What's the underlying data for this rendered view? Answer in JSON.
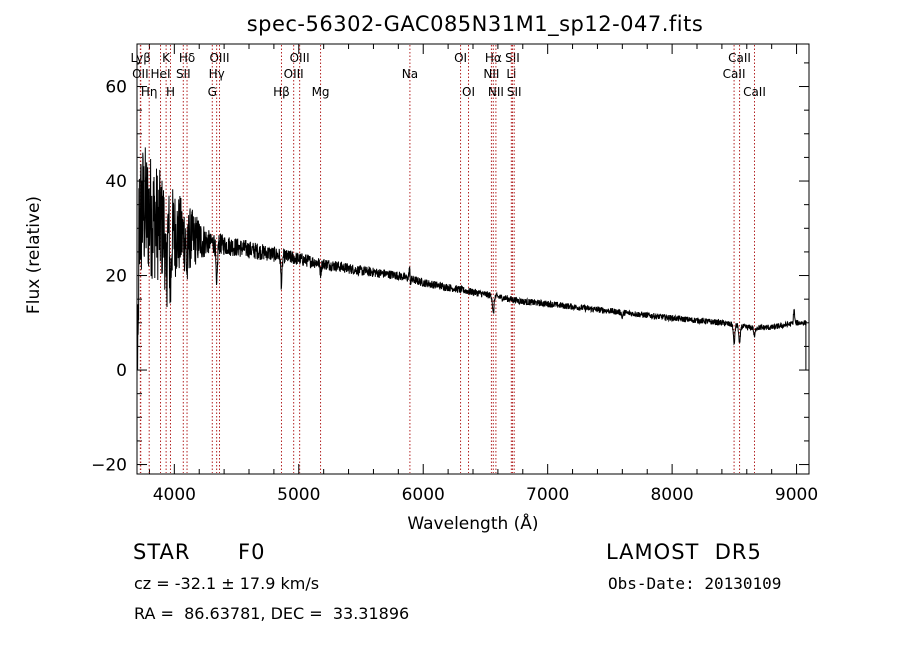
{
  "chart_data": {
    "type": "line",
    "title": "spec-56302-GAC085N31M1_sp12-047.fits",
    "xlabel": "Wavelength (Å)",
    "ylabel": "Flux (relative)",
    "xlim": [
      3700,
      9100
    ],
    "ylim": [
      -22,
      69
    ],
    "xticks": [
      4000,
      5000,
      6000,
      7000,
      8000,
      9000
    ],
    "yticks": [
      -20,
      0,
      20,
      40,
      60
    ],
    "grid": false,
    "line_color": "#000000",
    "marker_color": "#b22222",
    "lines": [
      {
        "label": "Lyβ",
        "wave": 3730,
        "row": 0
      },
      {
        "label": "OII",
        "wave": 3727,
        "row": 1
      },
      {
        "label": "Hη",
        "wave": 3798,
        "row": 2
      },
      {
        "label": "K",
        "wave": 3934,
        "row": 0
      },
      {
        "label": "HeI",
        "wave": 3889,
        "row": 1
      },
      {
        "label": "H",
        "wave": 3969,
        "row": 2
      },
      {
        "label": "Hδ",
        "wave": 4102,
        "row": 0
      },
      {
        "label": "SII",
        "wave": 4072,
        "row": 1
      },
      {
        "label": "OIII",
        "wave": 4363,
        "row": 0
      },
      {
        "label": "Hγ",
        "wave": 4340,
        "row": 1
      },
      {
        "label": "G",
        "wave": 4305,
        "row": 2
      },
      {
        "label": "Hβ",
        "wave": 4861,
        "row": 2
      },
      {
        "label": "OIII",
        "wave": 5007,
        "row": 0
      },
      {
        "label": "OIII",
        "wave": 4959,
        "row": 1
      },
      {
        "label": "Mg",
        "wave": 5175,
        "row": 2
      },
      {
        "label": "Na",
        "wave": 5893,
        "row": 1
      },
      {
        "label": "OI",
        "wave": 6300,
        "row": 0
      },
      {
        "label": "OI",
        "wave": 6364,
        "row": 2
      },
      {
        "label": "Hα",
        "wave": 6563,
        "row": 0
      },
      {
        "label": "NII",
        "wave": 6548,
        "row": 1
      },
      {
        "label": "NII",
        "wave": 6584,
        "row": 2
      },
      {
        "label": "SII",
        "wave": 6717,
        "row": 0
      },
      {
        "label": "Li",
        "wave": 6708,
        "row": 1
      },
      {
        "label": "SII",
        "wave": 6731,
        "row": 2
      },
      {
        "label": "CaII",
        "wave": 8542,
        "row": 0
      },
      {
        "label": "CaII",
        "wave": 8498,
        "row": 1
      },
      {
        "label": "CaII",
        "wave": 8662,
        "row": 2
      }
    ],
    "continuum": [
      [
        3700,
        30
      ],
      [
        3750,
        34
      ],
      [
        3800,
        33
      ],
      [
        3900,
        30
      ],
      [
        4000,
        29
      ],
      [
        4100,
        28
      ],
      [
        4200,
        27.5
      ],
      [
        4300,
        27
      ],
      [
        4500,
        26
      ],
      [
        4700,
        25
      ],
      [
        4900,
        24
      ],
      [
        5000,
        23.5
      ],
      [
        5200,
        22.5
      ],
      [
        5500,
        21
      ],
      [
        5800,
        20
      ],
      [
        6000,
        18.5
      ],
      [
        6200,
        17.5
      ],
      [
        6400,
        16.5
      ],
      [
        6600,
        15.5
      ],
      [
        6800,
        14.5
      ],
      [
        7000,
        14
      ],
      [
        7500,
        12.5
      ],
      [
        8000,
        11
      ],
      [
        8400,
        10
      ],
      [
        8600,
        9
      ],
      [
        8800,
        9
      ],
      [
        9000,
        10
      ],
      [
        9100,
        10
      ]
    ],
    "absorption": [
      {
        "wave": 3934,
        "depth": 12
      },
      {
        "wave": 3969,
        "depth": 12
      },
      {
        "wave": 4102,
        "depth": 7
      },
      {
        "wave": 4340,
        "depth": 10
      },
      {
        "wave": 4861,
        "depth": 6
      },
      {
        "wave": 5175,
        "depth": 2
      },
      {
        "wave": 5893,
        "depth": 2
      },
      {
        "wave": 6563,
        "depth": 4
      },
      {
        "wave": 7600,
        "depth": 1
      },
      {
        "wave": 8498,
        "depth": 4
      },
      {
        "wave": 8542,
        "depth": 4
      },
      {
        "wave": 8662,
        "depth": 2
      }
    ],
    "emission": [
      {
        "wave": 5890,
        "height": 4
      },
      {
        "wave": 8980,
        "height": 3
      }
    ],
    "noise": {
      "blue_amplitude": 14,
      "red_amplitude": 0.6,
      "transition_wave": 4300
    }
  },
  "footer": {
    "object_class": "STAR",
    "subclass": "F0",
    "survey": "LAMOST  DR5",
    "velocity": "cz = -32.1 ± 17.9 km/s",
    "obs_date": "Obs-Date: 20130109",
    "coords": "RA =  86.63781, DEC =  33.31896"
  }
}
